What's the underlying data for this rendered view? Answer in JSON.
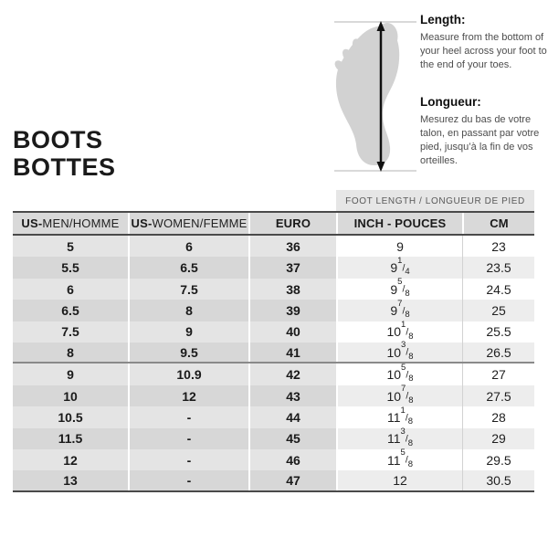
{
  "title": {
    "line1": "BOOTS",
    "line2": "BOTTES"
  },
  "guide": {
    "length_heading": "Length:",
    "length_body": "Measure from the bottom of your heel across your foot to the end of your toes.",
    "longueur_heading": "Longueur:",
    "longueur_body": "Mesurez du bas de votre talon, en passant par votre pied, jusqu’à la fin de vos orteilles."
  },
  "table": {
    "banner": "FOOT LENGTH / LONGUEUR DE PIED",
    "headers": [
      {
        "bold": "US-",
        "normal": "MEN/HOMME"
      },
      {
        "bold": "US-",
        "normal": "WOMEN/FEMME"
      },
      {
        "bold": "EURO",
        "normal": ""
      },
      {
        "bold": "INCH - POUCES",
        "normal": ""
      },
      {
        "bold": "CM",
        "normal": ""
      }
    ],
    "rows": [
      {
        "us_men": "5",
        "us_women": "6",
        "euro": "36",
        "inch": "9",
        "cm": "23"
      },
      {
        "us_men": "5.5",
        "us_women": "6.5",
        "euro": "37",
        "inch": "9 1/4",
        "cm": "23.5"
      },
      {
        "us_men": "6",
        "us_women": "7.5",
        "euro": "38",
        "inch": "9 5/8",
        "cm": "24.5"
      },
      {
        "us_men": "6.5",
        "us_women": "8",
        "euro": "39",
        "inch": "9 7/8",
        "cm": "25"
      },
      {
        "us_men": "7.5",
        "us_women": "9",
        "euro": "40",
        "inch": "10 1/8",
        "cm": "25.5"
      },
      {
        "us_men": "8",
        "us_women": "9.5",
        "euro": "41",
        "inch": "10 3/8",
        "cm": "26.5"
      },
      {
        "us_men": "9",
        "us_women": "10.9",
        "euro": "42",
        "inch": "10 5/8",
        "cm": "27"
      },
      {
        "us_men": "10",
        "us_women": "12",
        "euro": "43",
        "inch": "10 7/8",
        "cm": "27.5"
      },
      {
        "us_men": "10.5",
        "us_women": "-",
        "euro": "44",
        "inch": "11 1/8",
        "cm": "28"
      },
      {
        "us_men": "11.5",
        "us_women": "-",
        "euro": "45",
        "inch": "11 3/8",
        "cm": "29"
      },
      {
        "us_men": "12",
        "us_women": "-",
        "euro": "46",
        "inch": "11 5/8",
        "cm": "29.5"
      },
      {
        "us_men": "13",
        "us_women": "-",
        "euro": "47",
        "inch": "12",
        "cm": "30.5"
      }
    ]
  },
  "colors": {
    "row_gray_light": "#e4e4e4",
    "row_gray_dark": "#d7d7d7",
    "row_white": "#ffffff",
    "row_white_alt": "#ededed",
    "header_bg": "#d9d9d9",
    "banner_bg": "#e6e6e6",
    "border_dark": "#4a4a4a",
    "border_group": "#8a8a8a",
    "foot_fill": "#d2d2d2",
    "text_dark": "#1a1a1a"
  }
}
